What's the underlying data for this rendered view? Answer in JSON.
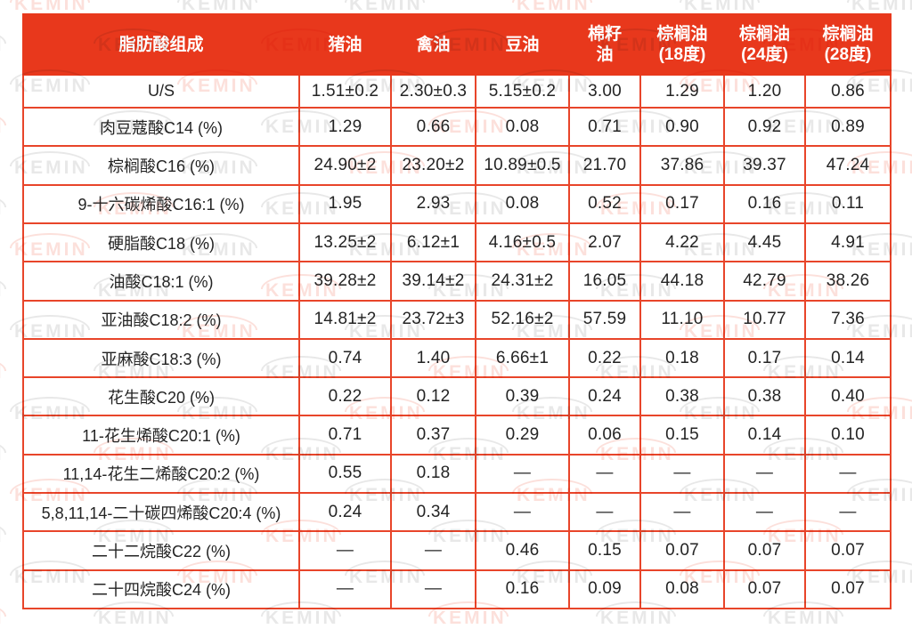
{
  "colors": {
    "header_bg": "#e8381c",
    "border": "#e8452a",
    "header_text": "#ffffff",
    "cell_text": "#242424",
    "watermark_gray": "#707070",
    "watermark_red": "#e8391d"
  },
  "watermark": {
    "text": "KEMIN"
  },
  "table": {
    "header": {
      "corner": "脂肪酸组成",
      "cells": [
        {
          "line1": "猪油",
          "line2": ""
        },
        {
          "line1": "禽油",
          "line2": ""
        },
        {
          "line1": "豆油",
          "line2": ""
        },
        {
          "line1": "棉籽",
          "line2": "油"
        },
        {
          "line1": "棕榈油",
          "line2": "(18度)"
        },
        {
          "line1": "棕榈油",
          "line2": "(24度)"
        },
        {
          "line1": "棕榈油",
          "line2": "(28度)"
        }
      ]
    }
  },
  "chart_data": {
    "type": "table",
    "title": "脂肪酸组成",
    "columns": [
      "脂肪酸组成",
      "猪油",
      "禽油",
      "豆油",
      "棉籽油",
      "棕榈油(18度)",
      "棕榈油(24度)",
      "棕榈油(28度)"
    ],
    "rows": [
      {
        "label": "U/S",
        "values": [
          "1.51±0.2",
          "2.30±0.3",
          "5.15±0.2",
          "3.00",
          "1.29",
          "1.20",
          "0.86"
        ]
      },
      {
        "label": "肉豆蔻酸C14 (%)",
        "values": [
          "1.29",
          "0.66",
          "0.08",
          "0.71",
          "0.90",
          "0.92",
          "0.89"
        ]
      },
      {
        "label": "棕榈酸C16 (%)",
        "values": [
          "24.90±2",
          "23.20±2",
          "10.89±0.5",
          "21.70",
          "37.86",
          "39.37",
          "47.24"
        ]
      },
      {
        "label": "9-十六碳烯酸C16:1 (%)",
        "values": [
          "1.95",
          "2.93",
          "0.08",
          "0.52",
          "0.17",
          "0.16",
          "0.11"
        ]
      },
      {
        "label": "硬脂酸C18 (%)",
        "values": [
          "13.25±2",
          "6.12±1",
          "4.16±0.5",
          "2.07",
          "4.22",
          "4.45",
          "4.91"
        ]
      },
      {
        "label": "油酸C18:1 (%)",
        "values": [
          "39.28±2",
          "39.14±2",
          "24.31±2",
          "16.05",
          "44.18",
          "42.79",
          "38.26"
        ]
      },
      {
        "label": "亚油酸C18:2 (%)",
        "values": [
          "14.81±2",
          "23.72±3",
          "52.16±2",
          "57.59",
          "11.10",
          "10.77",
          "7.36"
        ]
      },
      {
        "label": "亚麻酸C18:3 (%)",
        "values": [
          "0.74",
          "1.40",
          "6.66±1",
          "0.22",
          "0.18",
          "0.17",
          "0.14"
        ]
      },
      {
        "label": "花生酸C20 (%)",
        "values": [
          "0.22",
          "0.12",
          "0.39",
          "0.24",
          "0.38",
          "0.38",
          "0.40"
        ]
      },
      {
        "label": "11-花生烯酸C20:1 (%)",
        "values": [
          "0.71",
          "0.37",
          "0.29",
          "0.06",
          "0.15",
          "0.14",
          "0.10"
        ]
      },
      {
        "label": "11,14-花生二烯酸C20:2 (%)",
        "values": [
          "0.55",
          "0.18",
          "—",
          "—",
          "—",
          "—",
          "—"
        ]
      },
      {
        "label": "5,8,11,14-二十碳四烯酸C20:4 (%)",
        "values": [
          "0.24",
          "0.34",
          "—",
          "—",
          "—",
          "—",
          "—"
        ]
      },
      {
        "label": "二十二烷酸C22 (%)",
        "values": [
          "—",
          "—",
          "0.46",
          "0.15",
          "0.07",
          "0.07",
          "0.07"
        ]
      },
      {
        "label": "二十四烷酸C24 (%)",
        "values": [
          "—",
          "—",
          "0.16",
          "0.09",
          "0.08",
          "0.07",
          "0.07"
        ]
      }
    ]
  }
}
